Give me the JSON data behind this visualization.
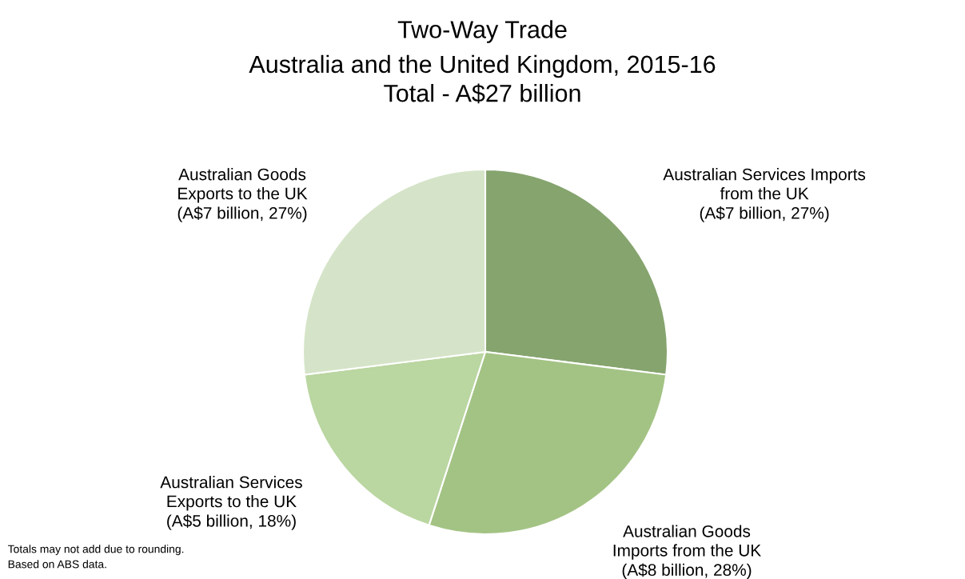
{
  "chart_data": {
    "type": "pie",
    "title": "Two-Way Trade",
    "subtitle": "Australia and the United Kingdom, 2015-16\nTotal - A$27 billion",
    "categories": [
      "Australian Services Imports\nfrom the UK",
      "Australian Goods\nImports from the UK",
      "Australian Services\nExports to the UK",
      "Australian Goods\nExports to the UK"
    ],
    "values": [
      27,
      28,
      18,
      27
    ],
    "value_labels": [
      "(A$7 billion, 27%)",
      "(A$8 billion, 28%)",
      "(A$5 billion, 18%)",
      "(A$7 billion, 27%)"
    ],
    "colors": [
      "#86a46e",
      "#a3c384",
      "#bad6a1",
      "#d5e4c8"
    ],
    "annotations": [
      "Totals may not add due to rounding.\nBased on ABS data."
    ]
  }
}
